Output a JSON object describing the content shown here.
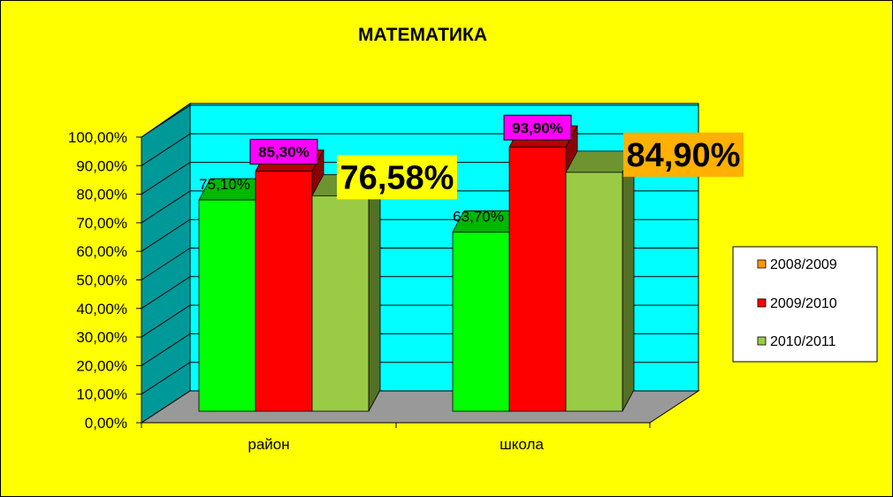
{
  "chart_data": {
    "type": "bar",
    "title": "МАТЕМАТИКА",
    "categories": [
      "район",
      "школа"
    ],
    "ylim": [
      0,
      100
    ],
    "y_ticks": [
      "0,00%",
      "10,00%",
      "20,00%",
      "30,00%",
      "40,00%",
      "50,00%",
      "60,00%",
      "70,00%",
      "80,00%",
      "90,00%",
      "100,00%"
    ],
    "legend_position": "right",
    "series": [
      {
        "name": "2008/2009",
        "color": "#00ff00",
        "legend_color": "#ff9900",
        "values": [
          75.1,
          63.7
        ],
        "labels": [
          "75,10%",
          "63,70%"
        ]
      },
      {
        "name": "2009/2010",
        "color": "#ff0000",
        "legend_color": "#ff0000",
        "values": [
          85.3,
          93.9
        ],
        "labels": [
          "85,30%",
          "93,90%"
        ]
      },
      {
        "name": "2010/2011",
        "color": "#99cc44",
        "legend_color": "#99cc44",
        "values": [
          76.58,
          84.9
        ],
        "labels": [
          "76,58%",
          "84,90%"
        ]
      }
    ],
    "colors": {
      "page_background": "#ffff00",
      "back_wall": "#00ffff",
      "side_wall": "#009999",
      "floor": "#999999",
      "label_2009_2010_bg": "#ff00ff",
      "label_2010_2011_raion_bg": "#ffff00",
      "label_2010_2011_shkola_bg": "#ffb000"
    }
  }
}
